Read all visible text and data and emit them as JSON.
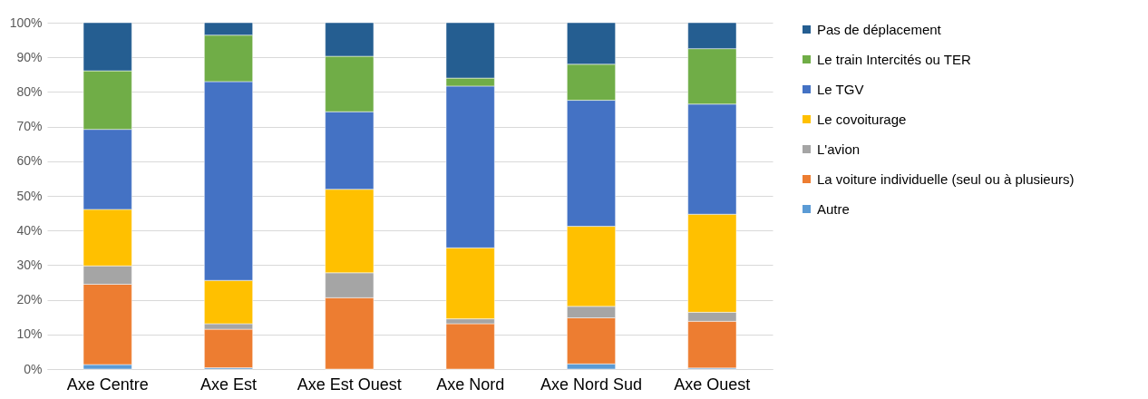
{
  "chart_data": {
    "type": "bar",
    "stacked": true,
    "categories": [
      "Axe Centre",
      "Axe Est",
      "Axe Est Ouest",
      "Axe Nord",
      "Axe Nord Sud",
      "Axe Ouest"
    ],
    "series": [
      {
        "name": "Autre",
        "color": "#5b9bd5",
        "values": [
          1.3,
          0.4,
          0,
          0,
          1.5,
          0.3
        ]
      },
      {
        "name": "La voiture individuelle (seul ou à plusieurs)",
        "color": "#ed7d31",
        "values": [
          23.2,
          11.1,
          20.6,
          13.1,
          13.3,
          13.5
        ]
      },
      {
        "name": "L'avion",
        "color": "#a5a5a5",
        "values": [
          5.3,
          1.6,
          7.2,
          1.4,
          3.3,
          2.6
        ]
      },
      {
        "name": "Le covoiturage",
        "color": "#ffc000",
        "values": [
          16.3,
          12.5,
          24.1,
          20.5,
          23.1,
          28.3
        ]
      },
      {
        "name": "Le TGV",
        "color": "#4472c4",
        "values": [
          23.1,
          57.4,
          22.4,
          46.7,
          36.4,
          31.8
        ]
      },
      {
        "name": "Le train Intercités ou TER",
        "color": "#70ad47",
        "values": [
          16.9,
          13.4,
          16.0,
          2.3,
          10.4,
          16.0
        ]
      },
      {
        "name": "Pas de déplacement",
        "color": "#255e91",
        "values": [
          13.9,
          3.6,
          9.7,
          16.0,
          12.0,
          7.5
        ]
      }
    ],
    "ylim": [
      0,
      100
    ],
    "yticks": [
      {
        "value": 0,
        "label": "0%"
      },
      {
        "value": 10,
        "label": "10%"
      },
      {
        "value": 20,
        "label": "20%"
      },
      {
        "value": 30,
        "label": "30%"
      },
      {
        "value": 40,
        "label": "40%"
      },
      {
        "value": 50,
        "label": "50%"
      },
      {
        "value": 60,
        "label": "60%"
      },
      {
        "value": 70,
        "label": "70%"
      },
      {
        "value": 80,
        "label": "80%"
      },
      {
        "value": 90,
        "label": "90%"
      },
      {
        "value": 100,
        "label": "100%"
      }
    ],
    "grid": "y",
    "legend": "right"
  }
}
